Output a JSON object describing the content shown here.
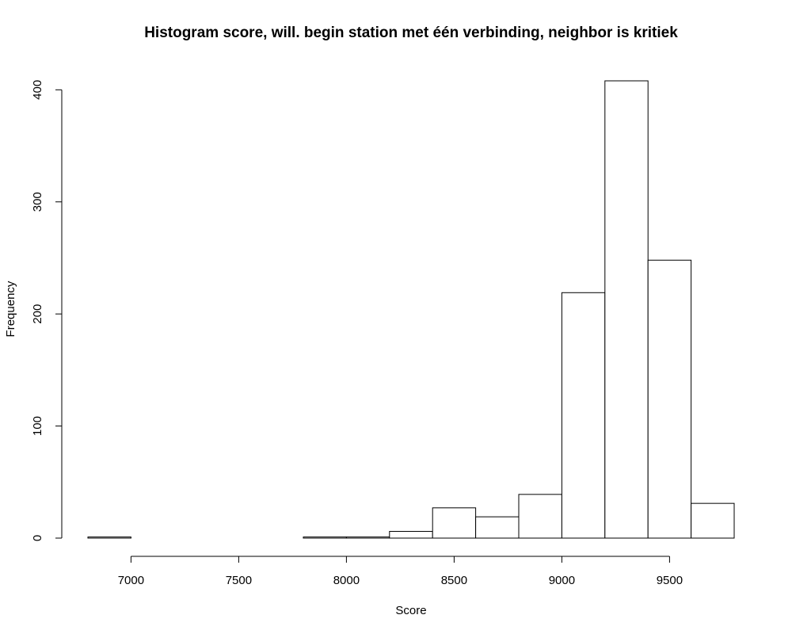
{
  "chart_data": {
    "type": "bar",
    "subtype": "histogram",
    "title": "Histogram score, will. begin station met één verbinding, neighbor is kritiek",
    "xlabel": "Score",
    "ylabel": "Frequency",
    "bins": [
      {
        "start": 6800,
        "end": 7000,
        "count": 1
      },
      {
        "start": 7000,
        "end": 7200,
        "count": 0
      },
      {
        "start": 7200,
        "end": 7400,
        "count": 0
      },
      {
        "start": 7400,
        "end": 7600,
        "count": 0
      },
      {
        "start": 7600,
        "end": 7800,
        "count": 0
      },
      {
        "start": 7800,
        "end": 8000,
        "count": 1
      },
      {
        "start": 8000,
        "end": 8200,
        "count": 1
      },
      {
        "start": 8200,
        "end": 8400,
        "count": 6
      },
      {
        "start": 8400,
        "end": 8600,
        "count": 27
      },
      {
        "start": 8600,
        "end": 8800,
        "count": 19
      },
      {
        "start": 8800,
        "end": 9000,
        "count": 39
      },
      {
        "start": 9000,
        "end": 9200,
        "count": 219
      },
      {
        "start": 9200,
        "end": 9400,
        "count": 408
      },
      {
        "start": 9400,
        "end": 9600,
        "count": 248
      },
      {
        "start": 9600,
        "end": 9800,
        "count": 31
      }
    ],
    "x_ticks": [
      "7000",
      "7500",
      "8000",
      "8500",
      "9000",
      "9500"
    ],
    "y_ticks": [
      "0",
      "100",
      "200",
      "300",
      "400"
    ],
    "xlim": [
      6800,
      9800
    ],
    "ylim": [
      0,
      408
    ],
    "grid": false,
    "legend": "none"
  }
}
